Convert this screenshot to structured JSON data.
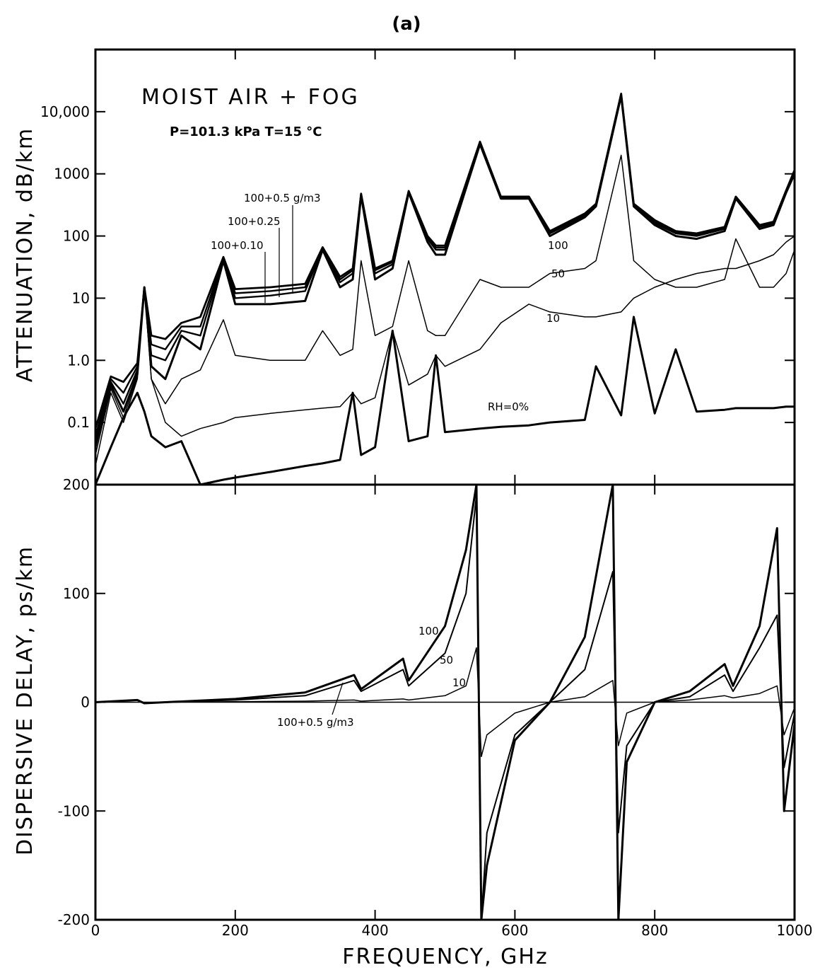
{
  "figure": {
    "caption": "(a)",
    "xlabel": "FREQUENCY,  GHz"
  },
  "chart_data": [
    {
      "type": "line",
      "panel": "top",
      "title": "MOIST  AIR  +  FOG",
      "subtitle": "P=101.3  kPa    T=15 °C",
      "ylabel": "ATTENUATION,  dB/km",
      "yscale": "log",
      "xlim": [
        0,
        1000
      ],
      "ylim": [
        0.01,
        100000
      ],
      "xticks": [
        0,
        200,
        400,
        600,
        800,
        1000
      ],
      "yticks": [
        0.1,
        1,
        10,
        100,
        1000,
        10000
      ],
      "ytick_labels": [
        "0.1",
        "1.0",
        "10",
        "100",
        "1000",
        "10,000"
      ],
      "x": [
        0,
        22,
        40,
        60,
        70,
        80,
        100,
        123,
        150,
        183,
        200,
        250,
        300,
        325,
        350,
        368,
        380,
        400,
        425,
        448,
        475,
        487,
        500,
        550,
        580,
        620,
        650,
        700,
        716,
        752,
        770,
        800,
        830,
        860,
        900,
        916,
        950,
        970,
        988,
        1000
      ],
      "series": [
        {
          "name": "RH=0%",
          "values": [
            0.01,
            0.04,
            0.12,
            0.3,
            0.15,
            0.06,
            0.04,
            0.05,
            0.01,
            0.012,
            0.013,
            0.016,
            0.02,
            0.022,
            0.025,
            0.3,
            0.03,
            0.04,
            3.0,
            0.05,
            0.06,
            1.2,
            0.07,
            0.08,
            0.085,
            0.09,
            0.1,
            0.11,
            0.8,
            0.13,
            5.0,
            0.14,
            1.5,
            0.15,
            0.16,
            0.17,
            0.17,
            0.17,
            0.18,
            0.18
          ]
        },
        {
          "name": "10",
          "values": [
            0.02,
            0.3,
            0.1,
            0.5,
            15,
            0.5,
            0.1,
            0.06,
            0.08,
            0.1,
            0.12,
            0.14,
            0.16,
            0.17,
            0.18,
            0.3,
            0.2,
            0.25,
            3.0,
            0.4,
            0.6,
            1.2,
            0.8,
            1.5,
            4,
            8,
            6,
            5,
            5,
            6,
            10,
            15,
            20,
            25,
            30,
            30,
            40,
            50,
            80,
            100
          ]
        },
        {
          "name": "50",
          "values": [
            0.03,
            0.35,
            0.12,
            0.55,
            15,
            0.5,
            0.2,
            0.5,
            0.7,
            4.5,
            1.2,
            1.0,
            1.0,
            3.0,
            1.2,
            1.5,
            40,
            2.5,
            3.5,
            40,
            3.0,
            2.5,
            2.5,
            20,
            15,
            15,
            25,
            30,
            40,
            2000,
            40,
            20,
            15,
            15,
            20,
            90,
            15,
            15,
            25,
            60
          ]
        },
        {
          "name": "100",
          "values": [
            0.04,
            0.4,
            0.15,
            0.6,
            15,
            0.8,
            0.5,
            2.5,
            1.5,
            40,
            8,
            8,
            9,
            60,
            15,
            20,
            450,
            20,
            30,
            500,
            80,
            50,
            50,
            3000,
            400,
            400,
            100,
            200,
            300,
            18000,
            300,
            150,
            100,
            90,
            120,
            400,
            130,
            150,
            500,
            1000
          ]
        },
        {
          "name": "100+0.10",
          "values": [
            0.05,
            0.45,
            0.2,
            0.7,
            15,
            1.2,
            1.0,
            3.0,
            2.5,
            42,
            10,
            11,
            13,
            62,
            18,
            25,
            460,
            25,
            35,
            510,
            90,
            60,
            60,
            3100,
            410,
            410,
            110,
            210,
            310,
            18500,
            310,
            160,
            110,
            100,
            130,
            410,
            140,
            160,
            520,
            1050
          ]
        },
        {
          "name": "100+0.25",
          "values": [
            0.06,
            0.5,
            0.3,
            0.8,
            15,
            1.8,
            1.5,
            3.5,
            3.5,
            44,
            12,
            13,
            15,
            64,
            20,
            28,
            470,
            28,
            38,
            520,
            95,
            65,
            65,
            3200,
            420,
            420,
            115,
            220,
            320,
            19000,
            320,
            170,
            115,
            105,
            135,
            420,
            145,
            165,
            530,
            1100
          ]
        },
        {
          "name": "100+0.5 g/m3",
          "values": [
            0.08,
            0.55,
            0.45,
            0.9,
            15,
            2.5,
            2.2,
            4.0,
            5.0,
            46,
            14,
            15,
            17,
            66,
            22,
            30,
            480,
            30,
            40,
            530,
            100,
            70,
            70,
            3300,
            430,
            430,
            120,
            230,
            330,
            19500,
            330,
            180,
            120,
            110,
            140,
            430,
            150,
            170,
            540,
            1150
          ]
        }
      ],
      "annotations": [
        "100+0.5  g/m3",
        "100+0.25",
        "100+0.10",
        "100",
        "50",
        "10",
        "RH=0%"
      ]
    },
    {
      "type": "line",
      "panel": "bottom",
      "ylabel": "DISPERSIVE  DELAY,  ps/km",
      "yscale": "linear",
      "xlim": [
        0,
        1000
      ],
      "ylim": [
        -200,
        200
      ],
      "xticks": [
        0,
        200,
        400,
        600,
        800,
        1000
      ],
      "yticks": [
        -200,
        -100,
        0,
        100,
        200
      ],
      "ytick_labels": [
        "-200",
        "-100",
        "0",
        "100",
        "200"
      ],
      "x": [
        0,
        60,
        70,
        100,
        200,
        300,
        370,
        380,
        440,
        448,
        500,
        530,
        545,
        552,
        560,
        600,
        650,
        700,
        740,
        748,
        760,
        800,
        850,
        900,
        912,
        950,
        975,
        985,
        1000
      ],
      "series": [
        {
          "name": "10",
          "values": [
            0,
            2,
            -1,
            0,
            0.5,
            1,
            2,
            1,
            3,
            2,
            6,
            15,
            50,
            -50,
            -30,
            -10,
            0,
            5,
            20,
            -40,
            -10,
            0,
            2,
            6,
            4,
            8,
            15,
            -30,
            -5
          ]
        },
        {
          "name": "50",
          "values": [
            0,
            2,
            -1,
            0,
            2,
            6,
            20,
            10,
            30,
            15,
            45,
            100,
            190,
            -200,
            -120,
            -30,
            0,
            30,
            120,
            -120,
            -40,
            0,
            5,
            25,
            10,
            50,
            80,
            -60,
            -10
          ]
        },
        {
          "name": "100",
          "values": [
            0,
            2,
            -1,
            0,
            3,
            9,
            25,
            12,
            40,
            20,
            70,
            140,
            200,
            -200,
            -150,
            -35,
            0,
            60,
            200,
            -200,
            -55,
            0,
            10,
            35,
            15,
            70,
            160,
            -100,
            -20
          ]
        }
      ],
      "annotations": [
        "100",
        "50",
        "10",
        "100+0.5  g/m3"
      ]
    }
  ]
}
